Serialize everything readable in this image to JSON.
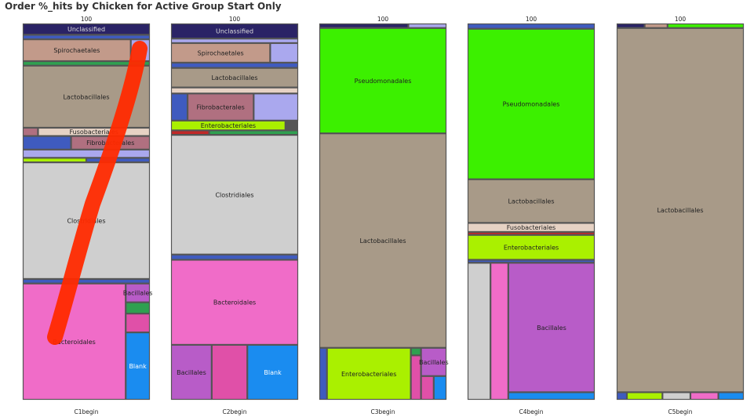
{
  "chart_data": {
    "type": "treemap",
    "title": "Order %_hits by Chicken for Active Group Start Only",
    "colors": {
      "Unclassified": "#2a2366",
      "Spirochaetales": "#c29a8a",
      "Lactobacillales": "#a89a88",
      "Fusobacteriales": "#e6d2c4",
      "Fibrobacterales": "#b07080",
      "Enterobacteriales": "#aaf000",
      "Clostridiales": "#cfcfcf",
      "Bacteroidales": "#f06cc8",
      "Bacillales": "#b85cc8",
      "Blank": "#1a8cf0",
      "Pseudomonadales": "#3cf000",
      "misc_blue": "#3f5bbf",
      "misc_lavender": "#aaa8ee",
      "misc_pink": "#e050a8",
      "misc_green": "#2fa050",
      "misc_red": "#c02828"
    },
    "panels": [
      {
        "name": "C1begin",
        "total": "100",
        "cells": [
          {
            "label": "Unclassified",
            "color": "Unclassified",
            "v": [
              0,
              0,
              1,
              0.03
            ]
          },
          {
            "label": "",
            "color": "misc_blue",
            "v": [
              0,
              0.03,
              1,
              0.012
            ]
          },
          {
            "label": "Spirochaetales",
            "color": "Spirochaetales",
            "v": [
              0,
              0.042,
              0.85,
              0.058
            ]
          },
          {
            "label": "",
            "color": "misc_lavender",
            "v": [
              0.85,
              0.042,
              0.15,
              0.058
            ]
          },
          {
            "label": "",
            "color": "misc_green",
            "v": [
              0,
              0.1,
              1,
              0.012
            ]
          },
          {
            "label": "Lactobacillales",
            "color": "Lactobacillales",
            "v": [
              0,
              0.112,
              1,
              0.165
            ]
          },
          {
            "label": "",
            "color": "Fibrobacterales",
            "v": [
              0,
              0.277,
              0.12,
              0.022
            ]
          },
          {
            "label": "Fusobacteriales",
            "color": "Fusobacteriales",
            "v": [
              0.12,
              0.277,
              0.88,
              0.022
            ]
          },
          {
            "label": "",
            "color": "misc_blue",
            "v": [
              0,
              0.299,
              0.38,
              0.036
            ]
          },
          {
            "label": "Fibrobacterales",
            "color": "Fibrobacterales",
            "v": [
              0.38,
              0.299,
              0.62,
              0.036
            ]
          },
          {
            "label": "",
            "color": "misc_lavender",
            "v": [
              0,
              0.335,
              1,
              0.022
            ]
          },
          {
            "label": "",
            "color": "Enterobacteriales",
            "v": [
              0,
              0.357,
              0.5,
              0.012
            ]
          },
          {
            "label": "",
            "color": "misc_blue",
            "v": [
              0.5,
              0.357,
              0.5,
              0.012
            ]
          },
          {
            "label": "Clostridiales",
            "color": "Clostridiales",
            "v": [
              0,
              0.369,
              1,
              0.31
            ]
          },
          {
            "label": "",
            "color": "misc_blue",
            "v": [
              0,
              0.679,
              1,
              0.012
            ]
          },
          {
            "label": "Bacteroidales",
            "color": "Bacteroidales",
            "v": [
              0,
              0.691,
              0.81,
              0.309
            ]
          },
          {
            "label": "Bacillales",
            "color": "Bacillales",
            "v": [
              0.81,
              0.691,
              0.19,
              0.05
            ]
          },
          {
            "label": "",
            "color": "misc_green",
            "v": [
              0.81,
              0.741,
              0.19,
              0.03
            ]
          },
          {
            "label": "",
            "color": "misc_pink",
            "v": [
              0.81,
              0.771,
              0.19,
              0.05
            ]
          },
          {
            "label": "Blank",
            "color": "Blank",
            "v": [
              0.81,
              0.821,
              0.19,
              0.179
            ]
          }
        ]
      },
      {
        "name": "C2begin",
        "total": "100",
        "cells": [
          {
            "label": "Unclassified",
            "color": "Unclassified",
            "v": [
              0,
              0,
              1,
              0.04
            ]
          },
          {
            "label": "",
            "color": "misc_lavender",
            "v": [
              0,
              0.04,
              1,
              0.012
            ]
          },
          {
            "label": "Spirochaetales",
            "color": "Spirochaetales",
            "v": [
              0,
              0.052,
              0.78,
              0.052
            ]
          },
          {
            "label": "",
            "color": "misc_lavender",
            "v": [
              0.78,
              0.052,
              0.22,
              0.052
            ]
          },
          {
            "label": "",
            "color": "misc_blue",
            "v": [
              0,
              0.104,
              1,
              0.014
            ]
          },
          {
            "label": "Lactobacillales",
            "color": "Lactobacillales",
            "v": [
              0,
              0.118,
              1,
              0.052
            ]
          },
          {
            "label": "",
            "color": "Fusobacteriales",
            "v": [
              0,
              0.17,
              1,
              0.016
            ]
          },
          {
            "label": "",
            "color": "misc_blue",
            "v": [
              0,
              0.186,
              0.13,
              0.072
            ]
          },
          {
            "label": "Fibrobacterales",
            "color": "Fibrobacterales",
            "v": [
              0.13,
              0.186,
              0.52,
              0.072
            ]
          },
          {
            "label": "",
            "color": "misc_lavender",
            "v": [
              0.65,
              0.186,
              0.35,
              0.072
            ]
          },
          {
            "label": "Enterobacteriales",
            "color": "Enterobacteriales",
            "v": [
              0,
              0.258,
              0.9,
              0.026
            ]
          },
          {
            "label": "",
            "color": "misc_red",
            "v": [
              0,
              0.284,
              0.3,
              0.012
            ]
          },
          {
            "label": "",
            "color": "misc_green",
            "v": [
              0.3,
              0.284,
              0.7,
              0.012
            ]
          },
          {
            "label": "Clostridiales",
            "color": "Clostridiales",
            "v": [
              0,
              0.296,
              1,
              0.318
            ]
          },
          {
            "label": "",
            "color": "misc_blue",
            "v": [
              0,
              0.614,
              1,
              0.014
            ]
          },
          {
            "label": "Bacteroidales",
            "color": "Bacteroidales",
            "v": [
              0,
              0.628,
              1,
              0.226
            ]
          },
          {
            "label": "Bacillales",
            "color": "Bacillales",
            "v": [
              0,
              0.854,
              0.32,
              0.146
            ]
          },
          {
            "label": "",
            "color": "misc_pink",
            "v": [
              0.32,
              0.854,
              0.28,
              0.146
            ]
          },
          {
            "label": "Blank",
            "color": "Blank",
            "v": [
              0.6,
              0.854,
              0.4,
              0.146
            ]
          }
        ]
      },
      {
        "name": "C3begin",
        "total": "100",
        "cells": [
          {
            "label": "",
            "color": "Unclassified",
            "v": [
              0,
              0,
              0.7,
              0.012
            ]
          },
          {
            "label": "",
            "color": "misc_lavender",
            "v": [
              0.7,
              0,
              0.3,
              0.012
            ]
          },
          {
            "label": "Pseudomonadales",
            "color": "Pseudomonadales",
            "v": [
              0,
              0.012,
              1,
              0.28
            ]
          },
          {
            "label": "Lactobacillales",
            "color": "Lactobacillales",
            "v": [
              0,
              0.292,
              1,
              0.57
            ]
          },
          {
            "label": "",
            "color": "misc_blue",
            "v": [
              0,
              0.862,
              0.06,
              0.138
            ]
          },
          {
            "label": "Enterobacteriales",
            "color": "Enterobacteriales",
            "v": [
              0.06,
              0.862,
              0.66,
              0.138
            ]
          },
          {
            "label": "",
            "color": "misc_green",
            "v": [
              0.72,
              0.862,
              0.08,
              0.02
            ]
          },
          {
            "label": "",
            "color": "misc_pink",
            "v": [
              0.72,
              0.882,
              0.08,
              0.118
            ]
          },
          {
            "label": "Bacillales",
            "color": "Bacillales",
            "v": [
              0.8,
              0.862,
              0.2,
              0.075
            ]
          },
          {
            "label": "",
            "color": "misc_pink",
            "v": [
              0.8,
              0.937,
              0.1,
              0.063
            ]
          },
          {
            "label": "",
            "color": "Blank",
            "v": [
              0.9,
              0.937,
              0.1,
              0.063
            ]
          }
        ]
      },
      {
        "name": "C4begin",
        "total": "100",
        "cells": [
          {
            "label": "",
            "color": "misc_blue",
            "v": [
              0,
              0,
              1,
              0.014
            ]
          },
          {
            "label": "Pseudomonadales",
            "color": "Pseudomonadales",
            "v": [
              0,
              0.014,
              1,
              0.4
            ]
          },
          {
            "label": "Lactobacillales",
            "color": "Lactobacillales",
            "v": [
              0,
              0.414,
              1,
              0.116
            ]
          },
          {
            "label": "Fusobacteriales",
            "color": "Fusobacteriales",
            "v": [
              0,
              0.53,
              1,
              0.024
            ]
          },
          {
            "label": "",
            "color": "misc_red",
            "v": [
              0,
              0.554,
              1,
              0.008
            ]
          },
          {
            "label": "Enterobacteriales",
            "color": "Enterobacteriales",
            "v": [
              0,
              0.562,
              1,
              0.066
            ]
          },
          {
            "label": "",
            "color": "misc_blue",
            "v": [
              0,
              0.628,
              1,
              0.008
            ]
          },
          {
            "label": "",
            "color": "Clostridiales",
            "v": [
              0,
              0.636,
              0.18,
              0.364
            ]
          },
          {
            "label": "",
            "color": "Bacteroidales",
            "v": [
              0.18,
              0.636,
              0.14,
              0.364
            ]
          },
          {
            "label": "Bacillales",
            "color": "Bacillales",
            "v": [
              0.32,
              0.636,
              0.68,
              0.344
            ]
          },
          {
            "label": "",
            "color": "Blank",
            "v": [
              0.32,
              0.98,
              0.68,
              0.02
            ]
          }
        ]
      },
      {
        "name": "C5begin",
        "total": "100",
        "cells": [
          {
            "label": "",
            "color": "Unclassified",
            "v": [
              0,
              0,
              0.22,
              0.012
            ]
          },
          {
            "label": "",
            "color": "Spirochaetales",
            "v": [
              0.22,
              0,
              0.18,
              0.012
            ]
          },
          {
            "label": "",
            "color": "Pseudomonadales",
            "v": [
              0.4,
              0,
              0.6,
              0.012
            ]
          },
          {
            "label": "Lactobacillales",
            "color": "Lactobacillales",
            "v": [
              0,
              0.012,
              1,
              0.968
            ]
          },
          {
            "label": "",
            "color": "misc_blue",
            "v": [
              0,
              0.98,
              0.08,
              0.02
            ]
          },
          {
            "label": "",
            "color": "Enterobacteriales",
            "v": [
              0.08,
              0.98,
              0.28,
              0.02
            ]
          },
          {
            "label": "",
            "color": "Clostridiales",
            "v": [
              0.36,
              0.98,
              0.22,
              0.02
            ]
          },
          {
            "label": "",
            "color": "Bacteroidales",
            "v": [
              0.58,
              0.98,
              0.22,
              0.02
            ]
          },
          {
            "label": "",
            "color": "Blank",
            "v": [
              0.8,
              0.98,
              0.2,
              0.02
            ]
          }
        ]
      }
    ]
  }
}
